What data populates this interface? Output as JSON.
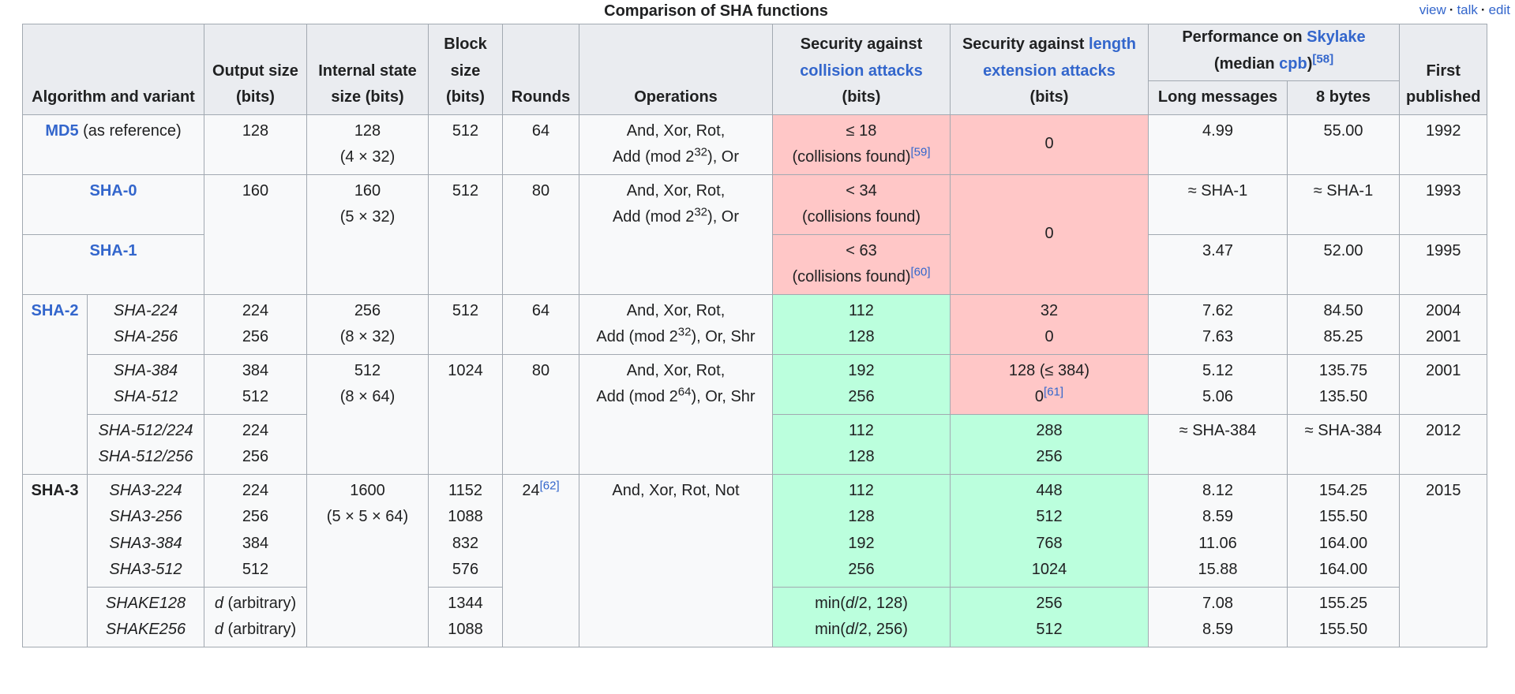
{
  "caption": "Comparison of SHA functions",
  "nav": {
    "view": "view",
    "talk": "talk",
    "edit": "edit"
  },
  "headers": {
    "algorithm": "Algorithm and variant",
    "output": "Output size (bits)",
    "internal": "Internal state size (bits)",
    "block": "Block size (bits)",
    "rounds": "Rounds",
    "operations": "Operations",
    "sec_collision_pre": "Security against",
    "sec_collision_link": "collision attacks",
    "sec_collision_post": "(bits)",
    "sec_length_pre": "Security against",
    "sec_length_link": "length extension attacks",
    "sec_length_post": "(bits)",
    "perf_pre": "Performance on",
    "perf_link": "Skylake",
    "perf_median": "(median",
    "perf_cpb": "cpb",
    "perf_close": ")",
    "perf_ref": "[58]",
    "long": "Long messages",
    "eight": "8 bytes",
    "first": "First published"
  },
  "md5": {
    "name": "MD5",
    "suffix": "(as reference)",
    "output": "128",
    "internal": "128",
    "internal_sub": "(4 × 32)",
    "block": "512",
    "rounds": "64",
    "ops1": "And, Xor, Rot,",
    "ops2_pre": "Add (mod 2",
    "ops2_exp": "32",
    "ops2_post": "), Or",
    "coll": "≤ 18",
    "coll_note": "(collisions found)",
    "coll_ref": "[59]",
    "lenext": "0",
    "long": "4.99",
    "eight": "55.00",
    "year": "1992"
  },
  "sha0": {
    "name": "SHA-0",
    "output": "160",
    "internal": "160",
    "internal_sub": "(5 × 32)",
    "block": "512",
    "rounds": "80",
    "ops1": "And, Xor, Rot,",
    "ops2_pre": "Add (mod 2",
    "ops2_exp": "32",
    "ops2_post": "), Or",
    "coll": "< 34",
    "coll_note": "(collisions found)",
    "lenext": "0",
    "long": "≈ SHA-1",
    "eight": "≈ SHA-1",
    "year": "1993"
  },
  "sha1": {
    "name": "SHA-1",
    "coll": "< 63",
    "coll_note": "(collisions found)",
    "coll_ref": "[60]",
    "long": "3.47",
    "eight": "52.00",
    "year": "1995"
  },
  "sha2": {
    "family": "SHA-2",
    "g1": {
      "v1": "SHA-224",
      "v2": "SHA-256",
      "out1": "224",
      "out2": "256",
      "internal": "256",
      "internal_sub": "(8 × 32)",
      "block": "512",
      "rounds": "64",
      "ops1": "And, Xor, Rot,",
      "ops2_pre": "Add (mod 2",
      "ops2_exp": "32",
      "ops2_post": "), Or, Shr",
      "coll1": "112",
      "coll2": "128",
      "len1": "32",
      "len2": "0",
      "long1": "7.62",
      "long2": "7.63",
      "eight1": "84.50",
      "eight2": "85.25",
      "year1": "2004",
      "year2": "2001"
    },
    "g2": {
      "v1": "SHA-384",
      "v2": "SHA-512",
      "out1": "384",
      "out2": "512",
      "internal": "512",
      "internal_sub": "(8 × 64)",
      "block": "1024",
      "rounds": "80",
      "ops1": "And, Xor, Rot,",
      "ops2_pre": "Add (mod 2",
      "ops2_exp": "64",
      "ops2_post": "), Or, Shr",
      "coll1": "192",
      "coll2": "256",
      "len1": "128 (≤ 384)",
      "len2": "0",
      "len2_ref": "[61]",
      "long1": "5.12",
      "long2": "5.06",
      "eight1": "135.75",
      "eight2": "135.50",
      "year": "2001"
    },
    "g3": {
      "v1": "SHA-512/224",
      "v2": "SHA-512/256",
      "out1": "224",
      "out2": "256",
      "coll1": "112",
      "coll2": "128",
      "len1": "288",
      "len2": "256",
      "long": "≈ SHA-384",
      "eight": "≈ SHA-384",
      "year": "2012"
    }
  },
  "sha3": {
    "family": "SHA-3",
    "internal": "1600",
    "internal_sub": "(5 × 5 × 64)",
    "rounds": "24",
    "rounds_ref": "[62]",
    "ops": "And, Xor, Rot, Not",
    "year": "2015",
    "variants": [
      {
        "name": "SHA3-224",
        "out": "224",
        "block": "1152",
        "coll": "112",
        "len": "448",
        "long": "8.12",
        "eight": "154.25"
      },
      {
        "name": "SHA3-256",
        "out": "256",
        "block": "1088",
        "coll": "128",
        "len": "512",
        "long": "8.59",
        "eight": "155.50"
      },
      {
        "name": "SHA3-384",
        "out": "384",
        "block": "832",
        "coll": "192",
        "len": "768",
        "long": "11.06",
        "eight": "164.00"
      },
      {
        "name": "SHA3-512",
        "out": "512",
        "block": "576",
        "coll": "256",
        "len": "1024",
        "long": "15.88",
        "eight": "164.00"
      }
    ],
    "shake": [
      {
        "name": "SHAKE128",
        "out_var": "d",
        "out_note": "(arbitrary)",
        "block": "1344",
        "coll_pre": "min(",
        "coll_var": "d",
        "coll_post": "/2, 128)",
        "len": "256",
        "long": "7.08",
        "eight": "155.25"
      },
      {
        "name": "SHAKE256",
        "out_var": "d",
        "out_note": "(arbitrary)",
        "block": "1088",
        "coll_pre": "min(",
        "coll_var": "d",
        "coll_post": "/2, 256)",
        "len": "512",
        "long": "8.59",
        "eight": "155.50"
      }
    ]
  },
  "colors": {
    "insecure": "#ffc7c7",
    "secure": "#bbffdd",
    "header": "#eaecf0",
    "link": "#3366cc"
  }
}
